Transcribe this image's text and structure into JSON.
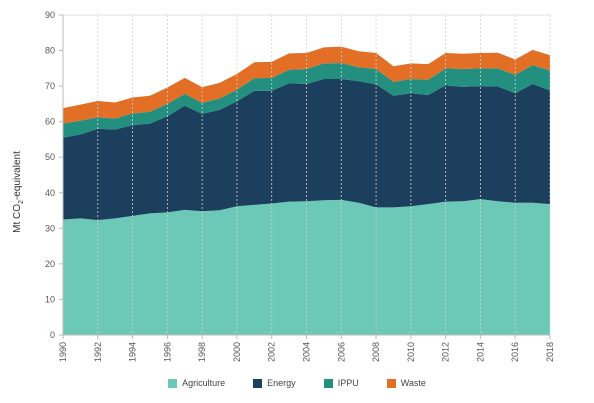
{
  "chart_data": {
    "type": "area",
    "stacked": true,
    "ylabel": "Mt CO",
    "ylabel_sub": "2",
    "ylabel_suffix": "-equivalent",
    "ylim": [
      0,
      90
    ],
    "yticks": [
      0,
      10,
      20,
      30,
      40,
      50,
      60,
      70,
      80,
      90
    ],
    "xlim": [
      1990,
      2018
    ],
    "xticks": [
      1990,
      1992,
      1994,
      1996,
      1998,
      2000,
      2002,
      2004,
      2006,
      2008,
      2010,
      2012,
      2014,
      2016,
      2018
    ],
    "grid": "dashed-vertical",
    "legend_position": "bottom",
    "x": [
      1990,
      1991,
      1992,
      1993,
      1994,
      1995,
      1996,
      1997,
      1998,
      1999,
      2000,
      2001,
      2002,
      2003,
      2004,
      2005,
      2006,
      2007,
      2008,
      2009,
      2010,
      2011,
      2012,
      2013,
      2014,
      2015,
      2016,
      2017,
      2018
    ],
    "series": [
      {
        "name": "Agriculture",
        "color": "#6cc9b7",
        "values": [
          32.5,
          32.8,
          32.3,
          32.8,
          33.5,
          34.2,
          34.5,
          35.2,
          34.8,
          35.1,
          36.2,
          36.6,
          37.0,
          37.5,
          37.6,
          37.9,
          38.0,
          37.2,
          35.9,
          35.9,
          36.2,
          36.8,
          37.5,
          37.6,
          38.2,
          37.6,
          37.2,
          37.2,
          36.8
        ]
      },
      {
        "name": "Energy",
        "color": "#1b3f5c",
        "values": [
          23.0,
          23.6,
          25.7,
          25.0,
          25.5,
          25.3,
          27.0,
          29.3,
          27.4,
          28.2,
          29.5,
          32.1,
          31.7,
          33.3,
          33.0,
          34.1,
          34.0,
          34.2,
          34.6,
          31.4,
          31.8,
          30.7,
          32.7,
          32.2,
          31.8,
          32.3,
          30.8,
          33.4,
          32.0
        ]
      },
      {
        "name": "IPPU",
        "color": "#23907f",
        "values": [
          4.0,
          3.9,
          3.2,
          3.1,
          3.3,
          3.3,
          3.5,
          3.3,
          3.1,
          3.2,
          3.3,
          3.5,
          3.6,
          3.8,
          4.2,
          4.4,
          4.5,
          3.9,
          4.3,
          3.9,
          4.0,
          4.3,
          4.8,
          5.0,
          5.0,
          5.1,
          5.2,
          5.3,
          5.6
        ]
      },
      {
        "name": "Waste",
        "color": "#e36f26",
        "values": [
          4.3,
          4.5,
          4.6,
          4.5,
          4.5,
          4.5,
          4.6,
          4.5,
          4.4,
          4.4,
          4.4,
          4.5,
          4.5,
          4.6,
          4.5,
          4.5,
          4.6,
          4.5,
          4.5,
          4.4,
          4.4,
          4.4,
          4.3,
          4.3,
          4.3,
          4.4,
          4.3,
          4.3,
          4.3
        ]
      }
    ]
  }
}
